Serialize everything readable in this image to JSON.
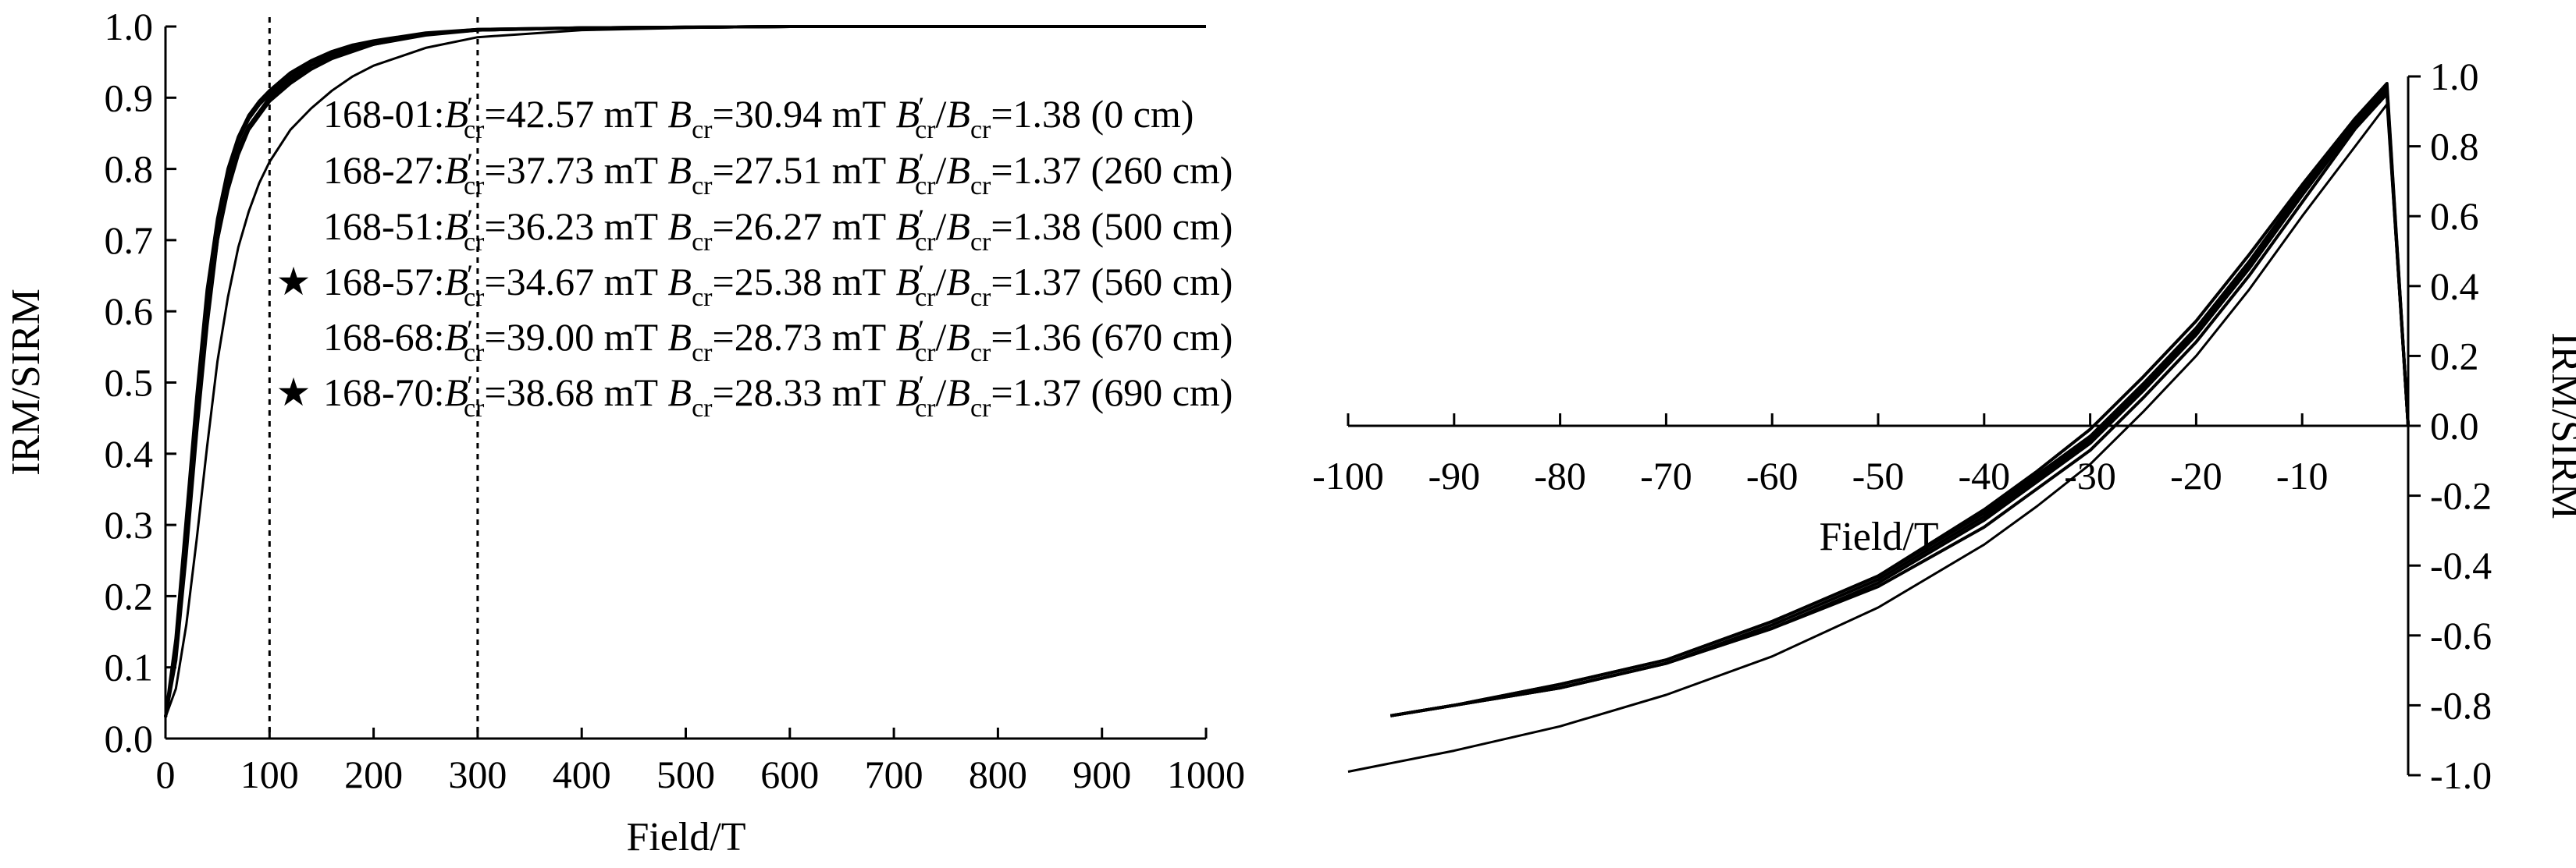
{
  "chart_data": [
    {
      "type": "line",
      "xlabel": "Field/T",
      "ylabel": "IRM/SIRM",
      "xlim": [
        0,
        1000
      ],
      "ylim": [
        0,
        1.0
      ],
      "x_ticks": [
        "0",
        "100",
        "200",
        "300",
        "400",
        "500",
        "600",
        "700",
        "800",
        "900",
        "1000"
      ],
      "y_ticks": [
        "0.0",
        "0.1",
        "0.2",
        "0.3",
        "0.4",
        "0.5",
        "0.6",
        "0.7",
        "0.8",
        "0.9",
        "1.0"
      ],
      "vlines": [
        100,
        300
      ],
      "annotations": [
        {
          "star": false,
          "sample": "168-01:",
          "bcr_prime": "=42.57 mT",
          "bcr": "=30.94 mT",
          "ratio": "=1.38 (0 cm)"
        },
        {
          "star": false,
          "sample": "168-27:",
          "bcr_prime": "=37.73 mT",
          "bcr": "=27.51 mT",
          "ratio": "=1.37 (260 cm)"
        },
        {
          "star": false,
          "sample": "168-51:",
          "bcr_prime": "=36.23 mT",
          "bcr": "=26.27 mT",
          "ratio": "=1.38 (500 cm)"
        },
        {
          "star": true,
          "sample": "168-57:",
          "bcr_prime": "=34.67 mT",
          "bcr": "=25.38 mT",
          "ratio": "=1.37 (560 cm)"
        },
        {
          "star": false,
          "sample": "168-68:",
          "bcr_prime": "=39.00 mT",
          "bcr": "=28.73 mT",
          "ratio": "=1.36 (670 cm)"
        },
        {
          "star": true,
          "sample": "168-70:",
          "bcr_prime": "=38.68 mT",
          "bcr": "=28.33 mT",
          "ratio": "=1.37 (690 cm)"
        }
      ],
      "series": [
        {
          "x": [
            0,
            10,
            20,
            30,
            40,
            50,
            60,
            70,
            80,
            90,
            100,
            120,
            140,
            160,
            180,
            200,
            250,
            300,
            400,
            500,
            600,
            700,
            800,
            900,
            1000
          ],
          "values": [
            0.03,
            0.12,
            0.28,
            0.45,
            0.6,
            0.71,
            0.78,
            0.83,
            0.86,
            0.88,
            0.9,
            0.925,
            0.945,
            0.96,
            0.97,
            0.975,
            0.99,
            0.995,
            0.998,
            0.999,
            1.0,
            1.0,
            1.0,
            1.0,
            1.0
          ]
        },
        {
          "x": [
            0,
            10,
            20,
            30,
            40,
            50,
            60,
            70,
            80,
            90,
            100,
            120,
            140,
            160,
            180,
            200,
            250,
            300,
            400,
            500,
            600,
            700,
            800,
            900,
            1000
          ],
          "values": [
            0.03,
            0.11,
            0.26,
            0.43,
            0.58,
            0.7,
            0.77,
            0.82,
            0.855,
            0.875,
            0.895,
            0.92,
            0.94,
            0.955,
            0.965,
            0.975,
            0.988,
            0.995,
            0.998,
            0.999,
            1.0,
            1.0,
            1.0,
            1.0,
            1.0
          ]
        },
        {
          "x": [
            0,
            10,
            20,
            30,
            40,
            50,
            60,
            70,
            80,
            90,
            100,
            120,
            140,
            160,
            180,
            200,
            250,
            300,
            400,
            500,
            600,
            700,
            800,
            900,
            1000
          ],
          "values": [
            0.03,
            0.13,
            0.3,
            0.47,
            0.62,
            0.72,
            0.79,
            0.84,
            0.87,
            0.89,
            0.905,
            0.93,
            0.95,
            0.963,
            0.972,
            0.978,
            0.99,
            0.996,
            0.998,
            0.999,
            1.0,
            1.0,
            1.0,
            1.0,
            1.0
          ]
        },
        {
          "x": [
            0,
            10,
            20,
            30,
            40,
            50,
            60,
            70,
            80,
            90,
            100,
            120,
            140,
            160,
            180,
            200,
            250,
            300,
            400,
            500,
            600,
            700,
            800,
            900,
            1000
          ],
          "values": [
            0.03,
            0.14,
            0.31,
            0.48,
            0.63,
            0.73,
            0.8,
            0.845,
            0.875,
            0.895,
            0.91,
            0.935,
            0.952,
            0.965,
            0.974,
            0.98,
            0.991,
            0.996,
            0.998,
            0.999,
            1.0,
            1.0,
            1.0,
            1.0,
            1.0
          ]
        },
        {
          "x": [
            0,
            10,
            20,
            30,
            40,
            50,
            60,
            70,
            80,
            90,
            100,
            120,
            140,
            160,
            180,
            200,
            250,
            300,
            400,
            500,
            600,
            700,
            800,
            900,
            1000
          ],
          "values": [
            0.03,
            0.12,
            0.27,
            0.44,
            0.59,
            0.7,
            0.775,
            0.825,
            0.86,
            0.88,
            0.9,
            0.925,
            0.945,
            0.958,
            0.968,
            0.975,
            0.989,
            0.995,
            0.998,
            0.999,
            1.0,
            1.0,
            1.0,
            1.0,
            1.0
          ]
        },
        {
          "x": [
            0,
            10,
            20,
            30,
            40,
            50,
            60,
            70,
            80,
            90,
            100,
            120,
            140,
            160,
            180,
            200,
            250,
            300,
            400,
            500,
            600,
            700,
            800,
            900,
            1000
          ],
          "values": [
            0.03,
            0.07,
            0.16,
            0.28,
            0.41,
            0.53,
            0.62,
            0.69,
            0.74,
            0.78,
            0.81,
            0.855,
            0.885,
            0.91,
            0.93,
            0.945,
            0.97,
            0.985,
            0.995,
            0.998,
            1.0,
            1.0,
            1.0,
            1.0,
            1.0
          ]
        }
      ]
    },
    {
      "type": "line",
      "xlabel": "Field/T",
      "ylabel": "IRM/SIRM",
      "xlim": [
        -100,
        0
      ],
      "ylim": [
        -1.0,
        1.0
      ],
      "x_ticks": [
        "-100",
        "-90",
        "-80",
        "-70",
        "-60",
        "-50",
        "-40",
        "-30",
        "-20",
        "-10"
      ],
      "x_tick_values": [
        -100,
        -90,
        -80,
        -70,
        -60,
        -50,
        -40,
        -30,
        -20,
        -10
      ],
      "y_ticks": [
        "-1.0",
        "-0.8",
        "-0.6",
        "-0.4",
        "-0.2",
        "0.0",
        "0.2",
        "0.4",
        "0.6",
        "0.8",
        "1.0"
      ],
      "y_tick_values": [
        -1.0,
        -0.8,
        -0.6,
        -0.4,
        -0.2,
        0.0,
        0.2,
        0.4,
        0.6,
        0.8,
        1.0
      ],
      "series": [
        {
          "x": [
            0,
            -2,
            -5,
            -10,
            -15,
            -20,
            -25,
            -30,
            -35,
            -40,
            -50,
            -60,
            -70,
            -80,
            -90,
            -96
          ],
          "values": [
            0.0,
            0.95,
            0.85,
            0.64,
            0.43,
            0.24,
            0.08,
            -0.07,
            -0.18,
            -0.29,
            -0.46,
            -0.58,
            -0.68,
            -0.75,
            -0.8,
            -0.83
          ]
        },
        {
          "x": [
            0,
            -2,
            -5,
            -10,
            -15,
            -20,
            -25,
            -30,
            -35,
            -40,
            -50,
            -60,
            -70,
            -80,
            -90,
            -96
          ],
          "values": [
            0.0,
            0.96,
            0.86,
            0.66,
            0.45,
            0.26,
            0.1,
            -0.05,
            -0.16,
            -0.27,
            -0.45,
            -0.58,
            -0.68,
            -0.75,
            -0.8,
            -0.83
          ]
        },
        {
          "x": [
            0,
            -2,
            -5,
            -10,
            -15,
            -20,
            -25,
            -30,
            -35,
            -40,
            -50,
            -60,
            -70,
            -80,
            -90,
            -96
          ],
          "values": [
            0.0,
            0.97,
            0.87,
            0.68,
            0.47,
            0.28,
            0.12,
            -0.03,
            -0.14,
            -0.25,
            -0.43,
            -0.56,
            -0.67,
            -0.74,
            -0.8,
            -0.83
          ]
        },
        {
          "x": [
            0,
            -2,
            -5,
            -10,
            -15,
            -20,
            -25,
            -30,
            -35,
            -40,
            -50,
            -60,
            -70,
            -80,
            -90,
            -96
          ],
          "values": [
            0.0,
            0.98,
            0.88,
            0.69,
            0.49,
            0.3,
            0.14,
            -0.01,
            -0.13,
            -0.24,
            -0.43,
            -0.56,
            -0.67,
            -0.74,
            -0.8,
            -0.83
          ]
        },
        {
          "x": [
            0,
            -2,
            -5,
            -10,
            -15,
            -20,
            -25,
            -30,
            -35,
            -40,
            -50,
            -60,
            -70,
            -80,
            -90,
            -96
          ],
          "values": [
            0.0,
            0.96,
            0.86,
            0.67,
            0.46,
            0.27,
            0.11,
            -0.04,
            -0.15,
            -0.26,
            -0.44,
            -0.57,
            -0.68,
            -0.75,
            -0.8,
            -0.83
          ]
        },
        {
          "x": [
            0,
            -2,
            -5,
            -10,
            -15,
            -20,
            -25,
            -30,
            -35,
            -40,
            -50,
            -60,
            -70,
            -80,
            -90,
            -100
          ],
          "values": [
            0.0,
            0.92,
            0.8,
            0.6,
            0.39,
            0.2,
            0.04,
            -0.11,
            -0.23,
            -0.34,
            -0.52,
            -0.66,
            -0.77,
            -0.86,
            -0.93,
            -0.99
          ]
        }
      ]
    }
  ]
}
